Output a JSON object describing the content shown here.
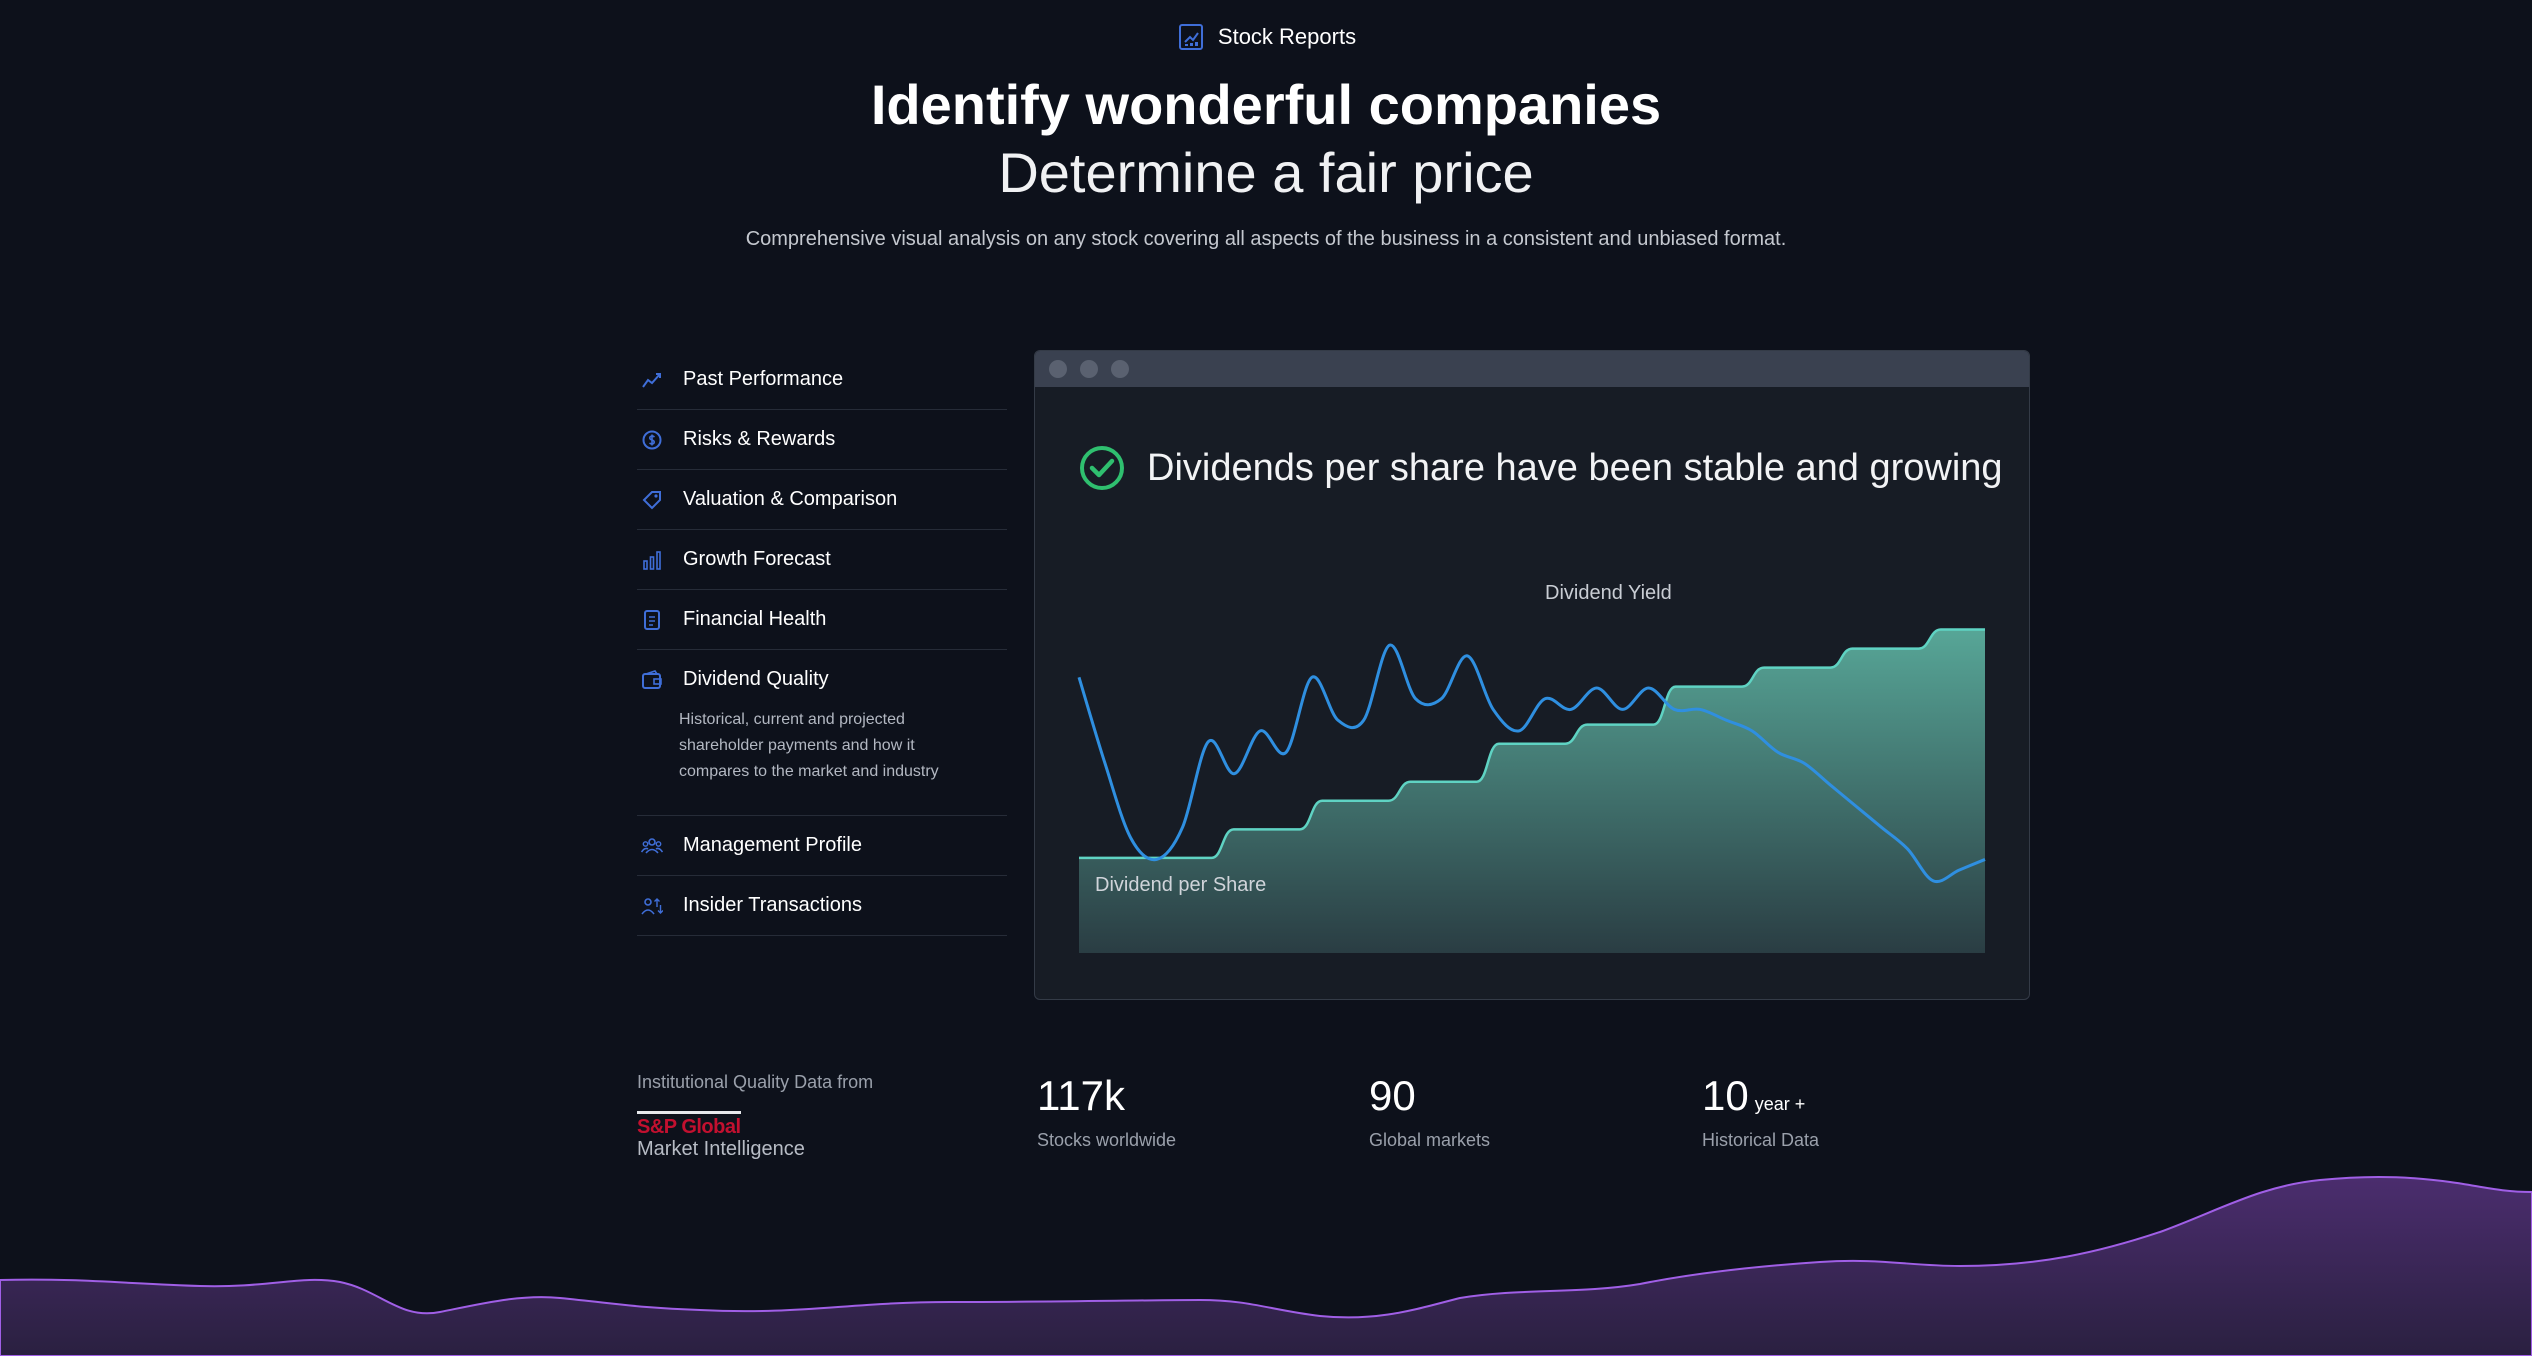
{
  "header": {
    "label": "Stock Reports",
    "title": "Identify wonderful companies",
    "subtitle": "Determine a fair price",
    "description": "Comprehensive visual analysis on any stock covering all aspects of the business in a consistent and unbiased format."
  },
  "sidebar": {
    "items": [
      {
        "label": "Past Performance",
        "icon": "line-chart-icon"
      },
      {
        "label": "Risks & Rewards",
        "icon": "dollar-circle-icon"
      },
      {
        "label": "Valuation & Comparison",
        "icon": "tag-dollar-icon"
      },
      {
        "label": "Growth Forecast",
        "icon": "bar-chart-icon"
      },
      {
        "label": "Financial Health",
        "icon": "document-icon"
      },
      {
        "label": "Dividend Quality",
        "icon": "wallet-icon",
        "active": true,
        "description": "Historical, current and projected shareholder payments and how it compares to the market and industry"
      },
      {
        "label": "Management Profile",
        "icon": "people-icon"
      },
      {
        "label": "Insider Transactions",
        "icon": "person-arrows-icon"
      }
    ]
  },
  "panel": {
    "heading": "Dividends per share have been stable and growing",
    "series_labels": {
      "yield": "Dividend Yield",
      "dps": "Dividend per Share"
    }
  },
  "chart_data": {
    "type": "area",
    "series": [
      {
        "name": "Dividend per Share",
        "style": "stepped area",
        "values": [
          1.0,
          1.0,
          1.0,
          1.0,
          1.0,
          1.0,
          1.0,
          1.3,
          1.3,
          1.3,
          1.3,
          1.6,
          1.6,
          1.6,
          1.6,
          1.8,
          1.8,
          1.8,
          1.8,
          2.2,
          2.2,
          2.2,
          2.2,
          2.4,
          2.4,
          2.4,
          2.4,
          2.8,
          2.8,
          2.8,
          2.8,
          3.0,
          3.0,
          3.0,
          3.0,
          3.2,
          3.2,
          3.2,
          3.2,
          3.4,
          3.4,
          3.4
        ]
      },
      {
        "name": "Dividend Yield",
        "style": "smooth line",
        "values": [
          3.6,
          2.8,
          2.1,
          1.9,
          2.2,
          3.0,
          2.7,
          3.1,
          2.9,
          3.6,
          3.2,
          3.2,
          3.9,
          3.4,
          3.4,
          3.8,
          3.3,
          3.1,
          3.4,
          3.3,
          3.5,
          3.3,
          3.5,
          3.3,
          3.3,
          3.2,
          3.1,
          2.9,
          2.8,
          2.6,
          2.4,
          2.2,
          2.0,
          1.7,
          1.8,
          1.9
        ]
      }
    ],
    "colors": {
      "dps_line": "#5fd3c3",
      "dps_fill_top": "#4f9c8e",
      "dps_fill_bottom": "#2b3f45",
      "yield_line": "#2f8fe0"
    },
    "grid": false,
    "xlabel": "",
    "ylabel": ""
  },
  "stats": {
    "provider_label": "Institutional Quality Data from",
    "provider_name": "S&P Global",
    "provider_sub": "Market Intelligence",
    "items": [
      {
        "value": "117k",
        "unit": "",
        "caption": "Stocks worldwide"
      },
      {
        "value": "90",
        "unit": "",
        "caption": "Global markets"
      },
      {
        "value": "10",
        "unit": "year +",
        "caption": "Historical Data"
      }
    ]
  },
  "colors": {
    "background": "#0d111b",
    "accent": "#3f6ed8",
    "success": "#2fbf6f",
    "wave": "#8a4fd6"
  }
}
